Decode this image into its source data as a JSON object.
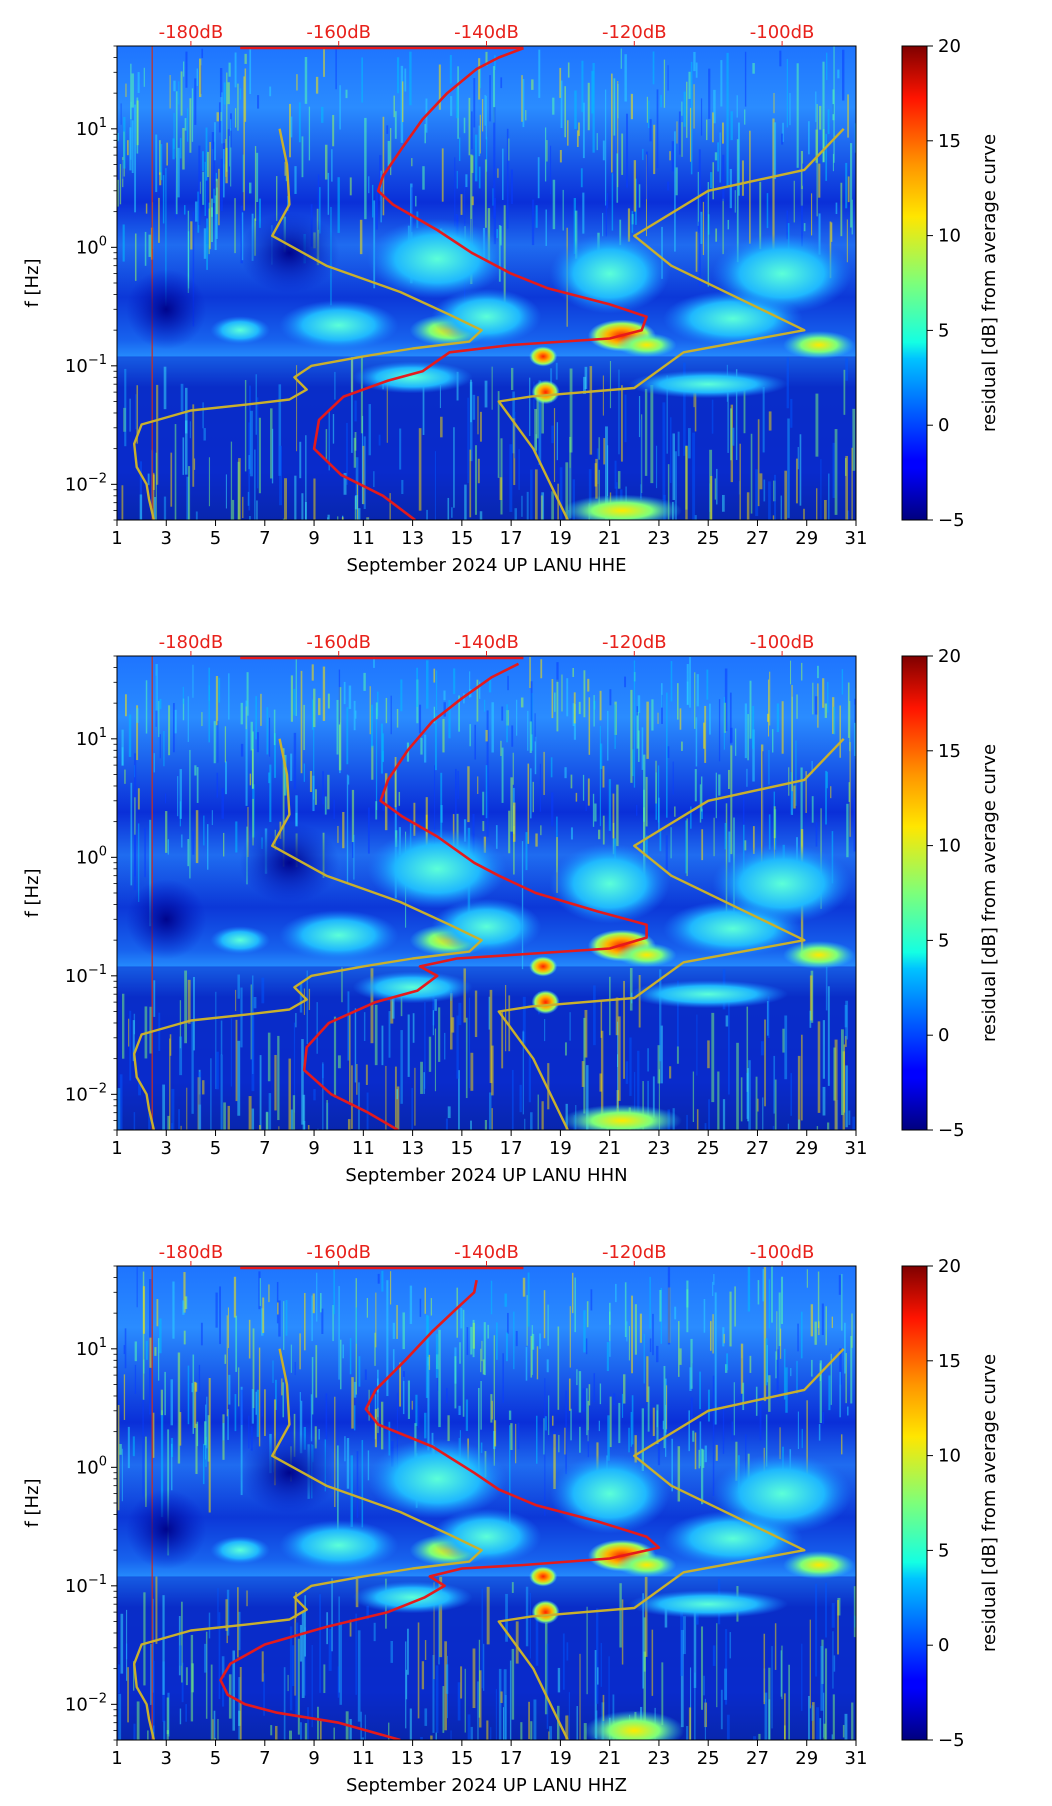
{
  "colors": {
    "db_label": "#e8211b",
    "red_curve": "#e41a1c",
    "gold_curve": "#c9b02d",
    "axis": "#000000"
  },
  "colorbar": {
    "label": "residual [dB] from average curve",
    "ticks": [
      "20",
      "15",
      "10",
      "5",
      "0",
      "−5"
    ],
    "range": [
      -5,
      20
    ],
    "colormap": "jet"
  },
  "chart_data": [
    {
      "type": "heatmap",
      "xlabel": "September 2024 UP LANU  HHE",
      "ylabel": "f [Hz]",
      "x_ticks": [
        "1",
        "3",
        "5",
        "7",
        "9",
        "11",
        "13",
        "15",
        "17",
        "19",
        "21",
        "23",
        "25",
        "27",
        "29",
        "31"
      ],
      "xlim": [
        1,
        31
      ],
      "ylim_hz": [
        0.005,
        50
      ],
      "y_ticks": [
        {
          "base": "10",
          "exp": "1"
        },
        {
          "base": "10",
          "exp": "0"
        },
        {
          "base": "10",
          "exp": "−1"
        },
        {
          "base": "10",
          "exp": "−2"
        }
      ],
      "db_scale_ticks": [
        "-180dB",
        "-160dB",
        "-140dB",
        "-120dB",
        "-100dB"
      ],
      "db_scale_positions_day": [
        4,
        10,
        16,
        22,
        28
      ],
      "series": [
        {
          "name": "average noise curve",
          "color": "red",
          "points": [
            [
              13.1,
              0.005
            ],
            [
              11.8,
              0.008
            ],
            [
              10.1,
              0.012
            ],
            [
              9,
              0.02
            ],
            [
              9.2,
              0.035
            ],
            [
              10.2,
              0.055
            ],
            [
              12,
              0.075
            ],
            [
              13.4,
              0.09
            ],
            [
              14,
              0.11
            ],
            [
              14.5,
              0.13
            ],
            [
              17,
              0.15
            ],
            [
              21,
              0.17
            ],
            [
              22.3,
              0.2
            ],
            [
              22.5,
              0.26
            ],
            [
              21,
              0.33
            ],
            [
              18.5,
              0.45
            ],
            [
              17,
              0.6
            ],
            [
              15.4,
              0.9
            ],
            [
              14,
              1.4
            ],
            [
              12.2,
              2.3
            ],
            [
              11.6,
              3
            ],
            [
              11.8,
              4
            ],
            [
              12.6,
              7
            ],
            [
              13.4,
              12
            ],
            [
              14.4,
              20
            ],
            [
              15.6,
              32
            ],
            [
              16.5,
              40
            ],
            [
              17.5,
              48
            ]
          ]
        },
        {
          "name": "NLNM",
          "color": "gold",
          "points": [
            [
              2.5,
              0.005
            ],
            [
              2.3,
              0.0075
            ],
            [
              2.2,
              0.01
            ],
            [
              1.8,
              0.014
            ],
            [
              1.7,
              0.022
            ],
            [
              2,
              0.032
            ],
            [
              4,
              0.042
            ],
            [
              6.2,
              0.047
            ],
            [
              8,
              0.052
            ],
            [
              8.7,
              0.063
            ],
            [
              8.2,
              0.08
            ],
            [
              8.9,
              0.1
            ],
            [
              11,
              0.12
            ],
            [
              13,
              0.14
            ],
            [
              15.3,
              0.16
            ],
            [
              15.8,
              0.2
            ],
            [
              14.5,
              0.27
            ],
            [
              12.5,
              0.42
            ],
            [
              9.5,
              0.7
            ],
            [
              7.3,
              1.25
            ],
            [
              8,
              2.3
            ],
            [
              7.9,
              5
            ],
            [
              7.6,
              10
            ]
          ]
        },
        {
          "name": "NHNM",
          "color": "gold",
          "points": [
            [
              19.3,
              0.005
            ],
            [
              17.9,
              0.02
            ],
            [
              16.5,
              0.05
            ],
            [
              17.8,
              0.055
            ],
            [
              22,
              0.065
            ],
            [
              24,
              0.13
            ],
            [
              28.9,
              0.2
            ],
            [
              26.5,
              0.35
            ],
            [
              23.5,
              0.7
            ],
            [
              22,
              1.25
            ],
            [
              25,
              3
            ],
            [
              28.9,
              4.5
            ],
            [
              30.5,
              10
            ]
          ]
        }
      ]
    },
    {
      "type": "heatmap",
      "xlabel": "September 2024 UP LANU  HHN",
      "ylabel": "f [Hz]",
      "x_ticks": [
        "1",
        "3",
        "5",
        "7",
        "9",
        "11",
        "13",
        "15",
        "17",
        "19",
        "21",
        "23",
        "25",
        "27",
        "29",
        "31"
      ],
      "xlim": [
        1,
        31
      ],
      "ylim_hz": [
        0.005,
        50
      ],
      "y_ticks": [
        {
          "base": "10",
          "exp": "1"
        },
        {
          "base": "10",
          "exp": "0"
        },
        {
          "base": "10",
          "exp": "−1"
        },
        {
          "base": "10",
          "exp": "−2"
        }
      ],
      "db_scale_ticks": [
        "-180dB",
        "-160dB",
        "-140dB",
        "-120dB",
        "-100dB"
      ],
      "db_scale_positions_day": [
        4,
        10,
        16,
        22,
        28
      ],
      "series": [
        {
          "name": "average noise curve",
          "color": "red",
          "points": [
            [
              12.4,
              0.005
            ],
            [
              11.2,
              0.007
            ],
            [
              9.7,
              0.01
            ],
            [
              8.6,
              0.016
            ],
            [
              8.7,
              0.025
            ],
            [
              9.6,
              0.04
            ],
            [
              11.5,
              0.06
            ],
            [
              13.2,
              0.075
            ],
            [
              14,
              0.1
            ],
            [
              13.3,
              0.12
            ],
            [
              14.8,
              0.14
            ],
            [
              17,
              0.15
            ],
            [
              21,
              0.17
            ],
            [
              22.5,
              0.21
            ],
            [
              22.5,
              0.27
            ],
            [
              20.5,
              0.35
            ],
            [
              18,
              0.5
            ],
            [
              16.5,
              0.7
            ],
            [
              15.5,
              0.9
            ],
            [
              14,
              1.5
            ],
            [
              12.6,
              2.2
            ],
            [
              11.7,
              3
            ],
            [
              12,
              4.5
            ],
            [
              12.8,
              8
            ],
            [
              13.8,
              14
            ],
            [
              15,
              22
            ],
            [
              16.2,
              33
            ],
            [
              17.3,
              43
            ]
          ]
        },
        {
          "name": "NLNM",
          "color": "gold",
          "points": [
            [
              2.5,
              0.005
            ],
            [
              2.3,
              0.0075
            ],
            [
              2.2,
              0.01
            ],
            [
              1.8,
              0.014
            ],
            [
              1.7,
              0.022
            ],
            [
              2,
              0.032
            ],
            [
              4,
              0.042
            ],
            [
              6.2,
              0.047
            ],
            [
              8,
              0.052
            ],
            [
              8.7,
              0.063
            ],
            [
              8.2,
              0.08
            ],
            [
              8.9,
              0.1
            ],
            [
              11,
              0.12
            ],
            [
              13,
              0.14
            ],
            [
              15.3,
              0.16
            ],
            [
              15.8,
              0.2
            ],
            [
              14.5,
              0.27
            ],
            [
              12.5,
              0.42
            ],
            [
              9.5,
              0.7
            ],
            [
              7.3,
              1.25
            ],
            [
              8,
              2.3
            ],
            [
              7.9,
              5
            ],
            [
              7.6,
              10
            ]
          ]
        },
        {
          "name": "NHNM",
          "color": "gold",
          "points": [
            [
              19.3,
              0.005
            ],
            [
              17.9,
              0.02
            ],
            [
              16.5,
              0.05
            ],
            [
              17.8,
              0.055
            ],
            [
              22,
              0.065
            ],
            [
              24,
              0.13
            ],
            [
              28.9,
              0.2
            ],
            [
              26.5,
              0.35
            ],
            [
              23.5,
              0.7
            ],
            [
              22,
              1.25
            ],
            [
              25,
              3
            ],
            [
              28.9,
              4.5
            ],
            [
              30.5,
              10
            ]
          ]
        }
      ]
    },
    {
      "type": "heatmap",
      "xlabel": "September 2024 UP LANU  HHZ",
      "ylabel": "f [Hz]",
      "x_ticks": [
        "1",
        "3",
        "5",
        "7",
        "9",
        "11",
        "13",
        "15",
        "17",
        "19",
        "21",
        "23",
        "25",
        "27",
        "29",
        "31"
      ],
      "xlim": [
        1,
        31
      ],
      "ylim_hz": [
        0.005,
        50
      ],
      "y_ticks": [
        {
          "base": "10",
          "exp": "1"
        },
        {
          "base": "10",
          "exp": "0"
        },
        {
          "base": "10",
          "exp": "−1"
        },
        {
          "base": "10",
          "exp": "−2"
        }
      ],
      "db_scale_ticks": [
        "-180dB",
        "-160dB",
        "-140dB",
        "-120dB",
        "-100dB"
      ],
      "db_scale_positions_day": [
        4,
        10,
        16,
        22,
        28
      ],
      "series": [
        {
          "name": "average noise curve",
          "color": "red",
          "points": [
            [
              12.5,
              0.005
            ],
            [
              10,
              0.007
            ],
            [
              7.5,
              0.0085
            ],
            [
              6.2,
              0.01
            ],
            [
              5.5,
              0.012
            ],
            [
              5.2,
              0.016
            ],
            [
              5.6,
              0.022
            ],
            [
              7,
              0.032
            ],
            [
              9.5,
              0.045
            ],
            [
              12,
              0.06
            ],
            [
              13.5,
              0.08
            ],
            [
              14.3,
              0.1
            ],
            [
              13.7,
              0.12
            ],
            [
              15,
              0.14
            ],
            [
              17.5,
              0.15
            ],
            [
              21,
              0.17
            ],
            [
              23,
              0.21
            ],
            [
              22.5,
              0.26
            ],
            [
              20.5,
              0.35
            ],
            [
              18,
              0.48
            ],
            [
              16.5,
              0.65
            ],
            [
              15.5,
              0.9
            ],
            [
              13.8,
              1.5
            ],
            [
              11.6,
              2.3
            ],
            [
              11.1,
              3.1
            ],
            [
              11.5,
              4.5
            ],
            [
              12.7,
              8
            ],
            [
              13.8,
              14
            ],
            [
              14.7,
              21
            ],
            [
              15.5,
              30
            ],
            [
              15.6,
              38
            ]
          ]
        },
        {
          "name": "NLNM",
          "color": "gold",
          "points": [
            [
              2.5,
              0.005
            ],
            [
              2.3,
              0.0075
            ],
            [
              2.2,
              0.01
            ],
            [
              1.8,
              0.014
            ],
            [
              1.7,
              0.022
            ],
            [
              2,
              0.032
            ],
            [
              4,
              0.042
            ],
            [
              6.2,
              0.047
            ],
            [
              8,
              0.052
            ],
            [
              8.7,
              0.063
            ],
            [
              8.2,
              0.08
            ],
            [
              8.9,
              0.1
            ],
            [
              11,
              0.12
            ],
            [
              13,
              0.14
            ],
            [
              15.3,
              0.16
            ],
            [
              15.8,
              0.2
            ],
            [
              14.5,
              0.27
            ],
            [
              12.5,
              0.42
            ],
            [
              9.5,
              0.7
            ],
            [
              7.3,
              1.25
            ],
            [
              8,
              2.3
            ],
            [
              7.9,
              5
            ],
            [
              7.6,
              10
            ]
          ]
        },
        {
          "name": "NHNM",
          "color": "gold",
          "points": [
            [
              19.3,
              0.005
            ],
            [
              17.9,
              0.02
            ],
            [
              16.5,
              0.05
            ],
            [
              17.8,
              0.055
            ],
            [
              22,
              0.065
            ],
            [
              24,
              0.13
            ],
            [
              28.9,
              0.2
            ],
            [
              26.5,
              0.35
            ],
            [
              23.5,
              0.7
            ],
            [
              22,
              1.25
            ],
            [
              25,
              3
            ],
            [
              28.9,
              4.5
            ],
            [
              30.5,
              10
            ]
          ]
        }
      ]
    }
  ]
}
